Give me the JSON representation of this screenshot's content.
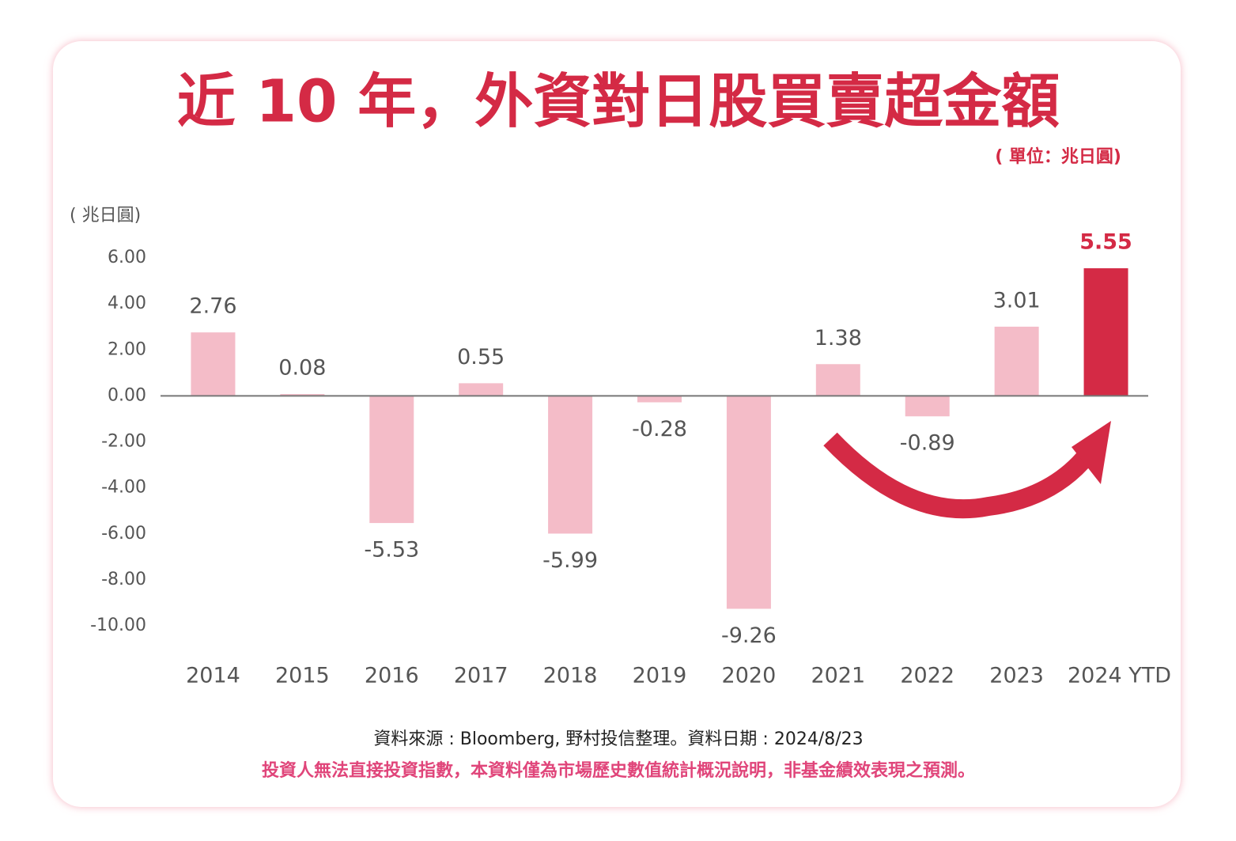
{
  "chart_data": {
    "type": "bar",
    "title": "近 10 年，外資對日股買賣超金額",
    "subtitle": "( 單位：兆日圓)",
    "y_label": "( 兆日圓)",
    "categories": [
      "2014",
      "2015",
      "2016",
      "2017",
      "2018",
      "2019",
      "2020",
      "2021",
      "2022",
      "2023",
      "2024 YTD"
    ],
    "values": [
      2.76,
      0.08,
      -5.53,
      0.55,
      -5.99,
      -0.28,
      -9.26,
      1.38,
      -0.89,
      3.01,
      5.55
    ],
    "colors": [
      "#f4bcc8",
      "#f4bcc8",
      "#f4bcc8",
      "#f4bcc8",
      "#f4bcc8",
      "#f4bcc8",
      "#f4bcc8",
      "#f4bcc8",
      "#f4bcc8",
      "#f4bcc8",
      "#d42a45"
    ],
    "ylim": [
      -10,
      6
    ],
    "yticks": [
      {
        "value": -10,
        "label": "-10.00"
      },
      {
        "value": -8,
        "label": "-8.00"
      },
      {
        "value": -6,
        "label": "-6.00"
      },
      {
        "value": -4,
        "label": "-4.00"
      },
      {
        "value": -2,
        "label": "-2.00"
      },
      {
        "value": 0,
        "label": "0.00"
      },
      {
        "value": 2,
        "label": "2.00"
      },
      {
        "value": 4,
        "label": "4.00"
      },
      {
        "value": 6,
        "label": "6.00"
      }
    ],
    "grid": false,
    "source": "資料來源 : Bloomberg, 野村投信整理。資料日期 : 2024/8/23",
    "disclaimer": "投資人無法直接投資指數，本資料僅為市場歷史數值統計概況說明，非基金績效表現之預測。"
  }
}
